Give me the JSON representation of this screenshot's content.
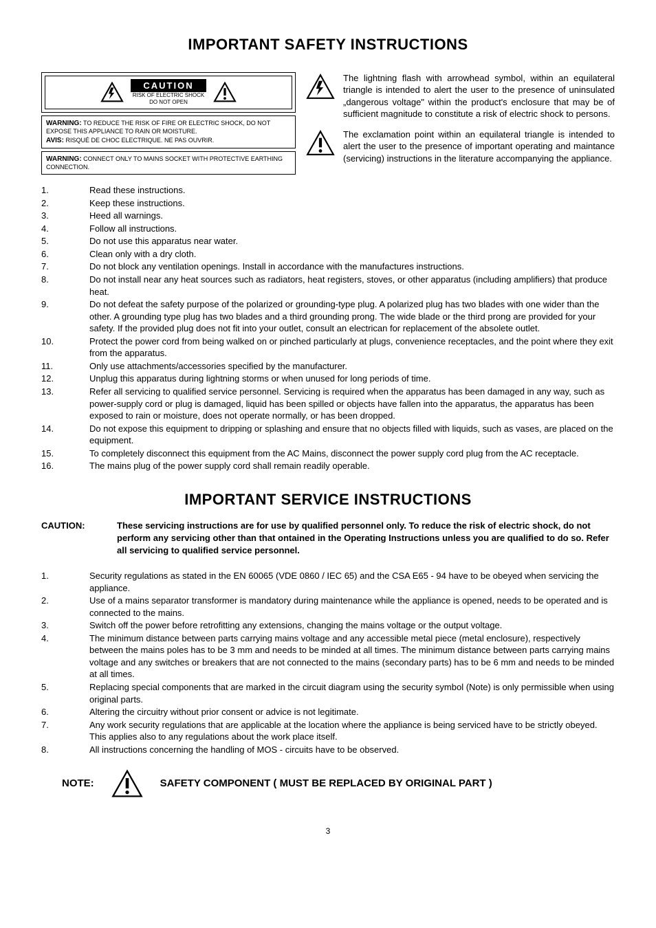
{
  "page": {
    "title1": "IMPORTANT SAFETY INSTRUCTIONS",
    "title2": "IMPORTANT SERVICE INSTRUCTIONS",
    "number": "3"
  },
  "caution_box": {
    "caution": "CAUTION",
    "risk1": "RISK OF ELECTRIC SHOCK",
    "risk2": "DO NOT OPEN",
    "warn1_b": "WARNING:",
    "warn1": " TO REDUCE THE RISK OF FIRE OR ELECTRIC SHOCK, DO NOT EXPOSE THIS APPLIANCE TO RAIN OR MOISTURE.",
    "avis_b": "AVIS:",
    "avis": " RISQUÉ DE CHOC ELECTRIQUE. NE PAS OUVRIR.",
    "warn2_b": "WARNING:",
    "warn2": " CONNECT ONLY TO MAINS SOCKET WITH PROTECTIVE EARTHING CONNECTION."
  },
  "symbol_desc": {
    "lightning": "The lightning flash with arrowhead symbol, within an equilateral triangle is intended to alert the user to the presence of uninsulated „dangerous voltage\" within the product's enclosure that may be of sufficient magnitude to constitute a risk of electric shock to persons.",
    "exclaim": "The exclamation point within an equilateral triangle is intended to alert the user to the presence of important operating and maintance (servicing) instructions in the literature accompanying the appliance."
  },
  "safety_list": [
    "Read these instructions.",
    "Keep these instructions.",
    "Heed all warnings.",
    "Follow all instructions.",
    "Do not use this apparatus near water.",
    "Clean only with a dry cloth.",
    "Do not block any ventilation openings. Install in accordance with the manufactures instructions.",
    "Do not install near any heat sources such as radiators, heat registers, stoves, or other apparatus (including amplifiers) that produce heat.",
    "Do not defeat the safety purpose of the polarized or grounding-type plug. A polarized plug has two blades with one wider than the other. A grounding type plug has two blades and a third grounding prong. The wide blade or the third prong are provided for your safety. If the provided plug does not fit into your outlet, consult an electrican for replacement of the absolete outlet.",
    "Protect the power cord from being walked on or pinched particularly at plugs, convenience receptacles, and the point where they exit from the apparatus.",
    "Only use attachments/accessories specified by the manufacturer.",
    "Unplug this apparatus during lightning storms or when unused for long periods of time.",
    "Refer all servicing to qualified service personnel. Servicing is required when the apparatus has been damaged in any way, such as power-supply cord or plug is damaged, liquid has been spilled or objects have fallen into the apparatus, the apparatus has been exposed to rain or moisture, does not operate normally, or has been dropped.",
    "Do not expose this equipment to dripping or splashing and ensure that no objects filled with liquids, such as vases, are placed on the equipment.",
    "To completely disconnect this equipment from the AC Mains, disconnect the power supply cord plug from the AC receptacle.",
    "The mains plug of the power supply cord shall remain readily operable."
  ],
  "caution_block": {
    "label": "CAUTION:",
    "text": "These servicing instructions are for use by qualified personnel only. To reduce the risk of electric shock, do not perform any servicing other than that ontained in the Operating Instructions unless you are qualified to do so. Refer all servicing to qualified service personnel."
  },
  "service_list": [
    "Security regulations as stated in the EN 60065 (VDE 0860 / IEC 65) and the CSA E65 - 94 have to be obeyed when servicing the appliance.",
    "Use of a mains separator transformer is mandatory during maintenance while the appliance is opened, needs to be operated and is connected to the mains.",
    "Switch off the power before retrofitting any extensions, changing the mains voltage or the output voltage.",
    "The minimum distance between parts carrying mains voltage and any accessible metal piece (metal enclosure), respectively between the mains poles has to be 3 mm and needs to be minded at all times. The minimum distance between parts carrying mains voltage and any switches or breakers that are not connected  to the mains (secondary parts) has to be 6 mm and needs to be minded at all times.",
    "Replacing special components that are marked in the circuit diagram using the security symbol (Note) is only permissible when using original parts.",
    "Altering the circuitry without prior consent or advice is not legitimate.",
    "Any work security regulations that are applicable at the location where the appliance is being serviced have to be strictly obeyed. This applies also to any regulations about the work place itself.",
    "All instructions concerning the handling of MOS - circuits have to be observed."
  ],
  "note": {
    "label": "NOTE:",
    "text": "SAFETY COMPONENT ( MUST BE REPLACED BY ORIGINAL PART )"
  },
  "icons": {
    "triangle_stroke": "#000",
    "triangle_fill": "none"
  }
}
